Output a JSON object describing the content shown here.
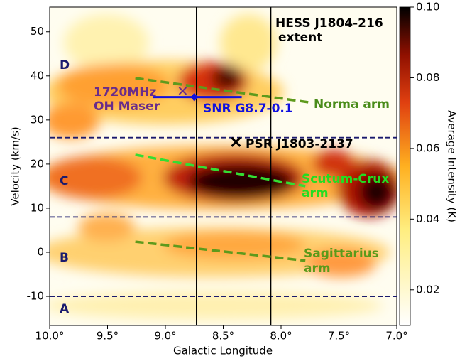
{
  "chart_data": {
    "type": "heatmap",
    "xlabel": "Galactic Longitude",
    "ylabel": "Velocity (km/s)",
    "xlim": [
      10,
      7
    ],
    "ylim": [
      -16.6,
      55.6
    ],
    "xticks": [
      {
        "value": 10,
        "label": "10.0°"
      },
      {
        "value": 9.5,
        "label": "9.5°"
      },
      {
        "value": 9,
        "label": "9.0°"
      },
      {
        "value": 8.5,
        "label": "8.5°"
      },
      {
        "value": 8,
        "label": "8.0°"
      },
      {
        "value": 7.5,
        "label": "7.5°"
      },
      {
        "value": 7,
        "label": "7.0°"
      }
    ],
    "yticks": [
      -10,
      0,
      10,
      20,
      30,
      40,
      50
    ],
    "colorbar": {
      "label": "Average Intensity (K)",
      "lim": [
        0.0099,
        0.1
      ],
      "ticks": [
        0.02,
        0.04,
        0.06,
        0.08,
        {
          "value": 0.1,
          "label": "0.10"
        }
      ]
    },
    "extent": {
      "label": [
        "HESS J1804-216",
        "extent"
      ],
      "x": [
        8.73,
        8.09
      ],
      "color": "#000000"
    },
    "velocity_bounds": {
      "y": [
        26,
        8,
        -10
      ],
      "color": "#1a1a6e"
    },
    "regions": [
      "D",
      "C",
      "B",
      "A"
    ],
    "arms": [
      {
        "name": [
          "Norma arm"
        ],
        "x": [
          9.26,
          7.73
        ],
        "y": [
          39.5,
          33.9
        ],
        "color": "#5e9a1c",
        "text_color": "#4a8c1a"
      },
      {
        "name": [
          "Scutum-Crux",
          "arm"
        ],
        "x": [
          9.26,
          7.79
        ],
        "y": [
          22.1,
          15
        ],
        "color": "#33dd33",
        "text_color": "#22dd22"
      },
      {
        "name": [
          "Sagittarius",
          "arm"
        ],
        "x": [
          9.26,
          7.79
        ],
        "y": [
          2.4,
          -1.9
        ],
        "color": "#5e9a1c",
        "text_color": "#5a9a1a"
      }
    ],
    "oh_maser": {
      "label": [
        "1720MHz",
        "OH Maser"
      ],
      "x": 8.85,
      "y": 36.6,
      "color": "#6a2c8a"
    },
    "snr": {
      "label": "SNR G8.7-0.1",
      "x": [
        9.11,
        8.34
      ],
      "y": [
        35.2,
        35.2
      ],
      "marker_x": 8.75,
      "marker_y": 35.2,
      "color": "#1010e0"
    },
    "psr": {
      "label": "PSR J1803-2137",
      "x": 8.39,
      "y": 25,
      "color": "#000000"
    }
  }
}
